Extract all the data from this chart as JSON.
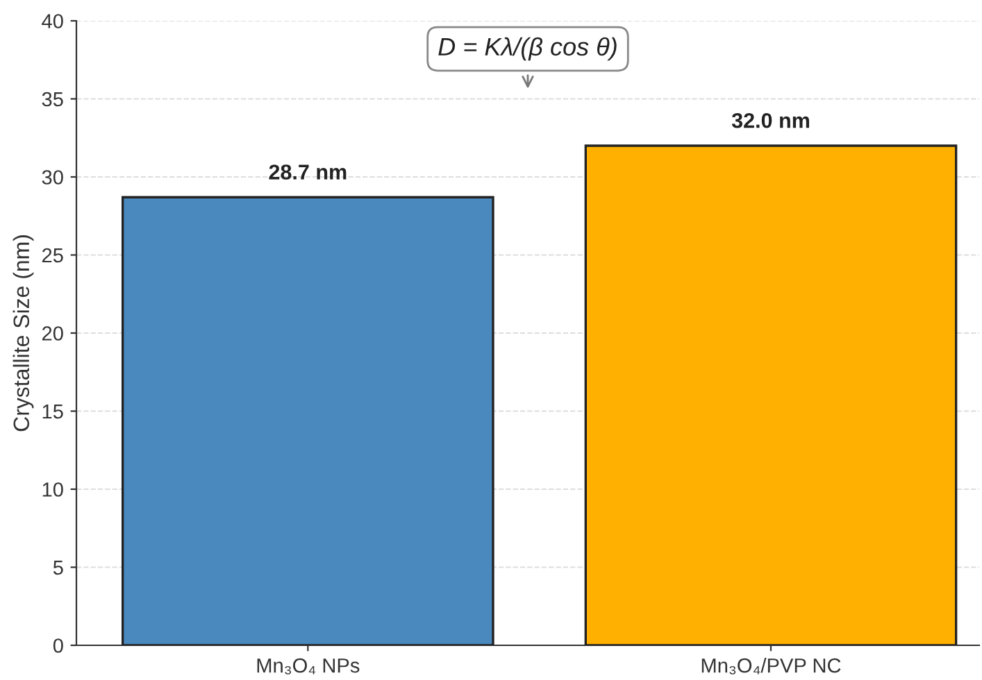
{
  "chart_data": {
    "type": "bar",
    "ylabel": "Crystallite Size (nm)",
    "categories": [
      "Mn₃O₄ NPs",
      "Mn₃O₄/PVP NC"
    ],
    "values": [
      28.7,
      32.0
    ],
    "colors": [
      "#4a89be",
      "#ffb000"
    ],
    "value_labels": [
      "28.7 nm",
      "32.0 nm"
    ],
    "ylim": [
      0,
      40
    ],
    "yticks": [
      0,
      5,
      10,
      15,
      20,
      25,
      30,
      35,
      40
    ],
    "grid": "y",
    "annotations": [
      "D = Kλ/(β cos θ)"
    ]
  }
}
